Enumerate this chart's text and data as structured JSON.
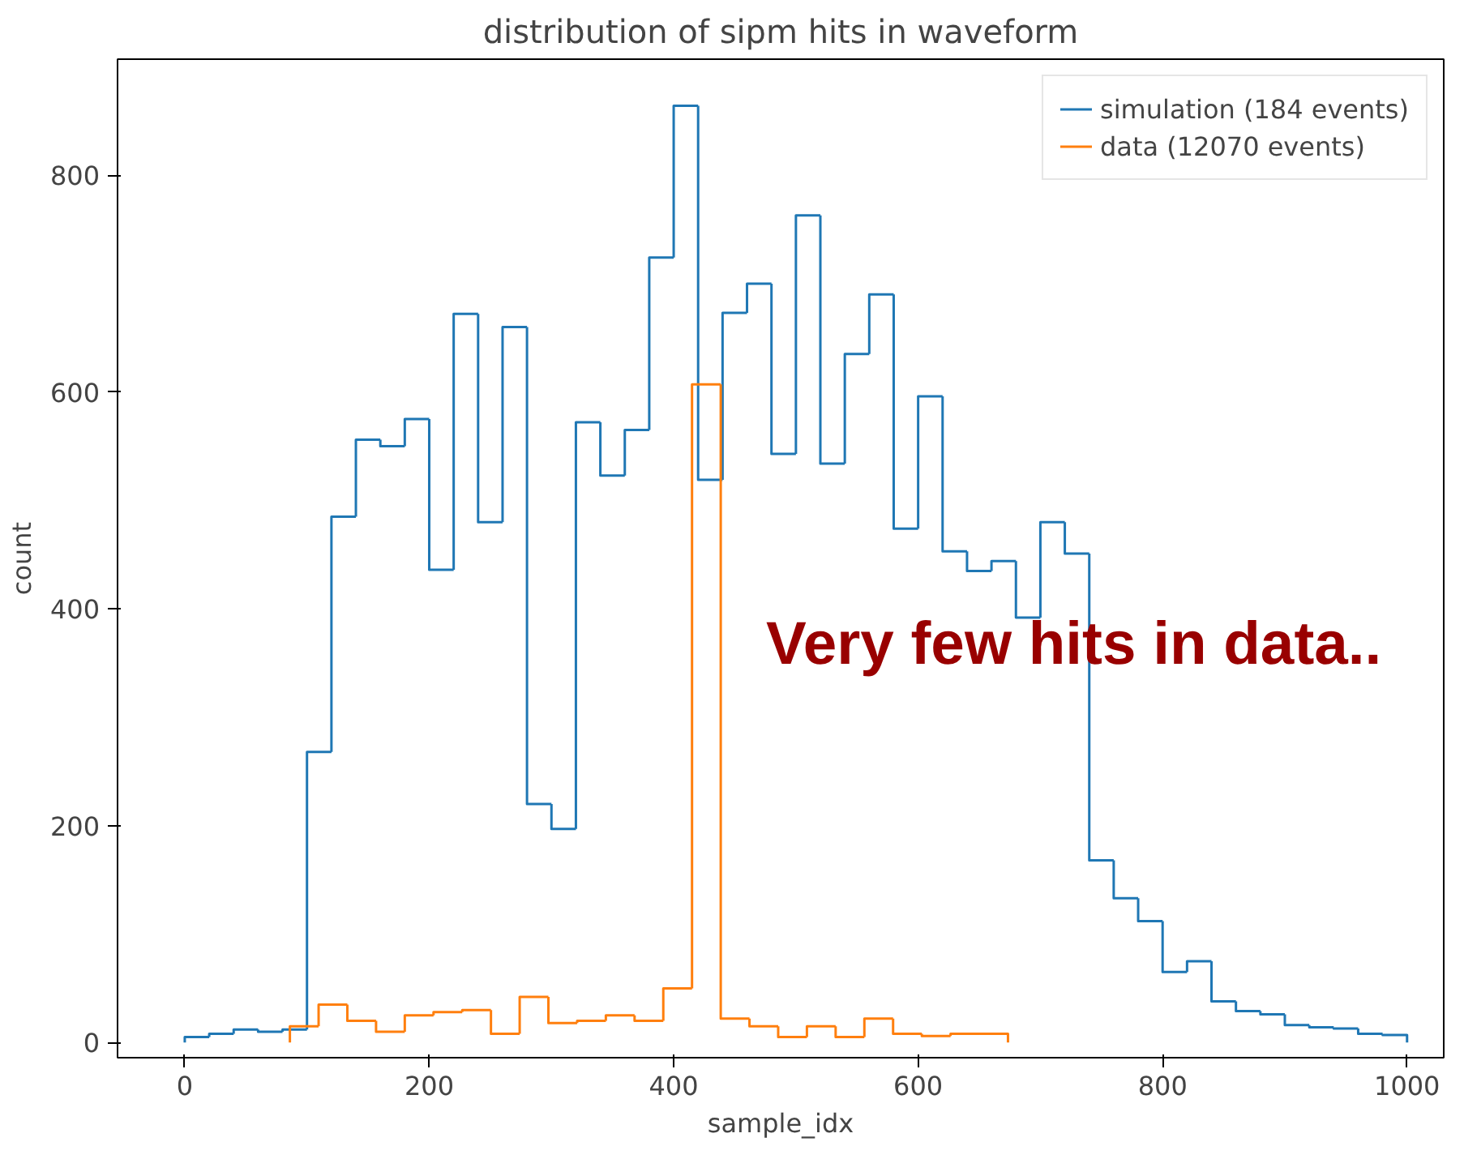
{
  "chart_data": {
    "type": "histogram",
    "title": "distribution of sipm hits in waveform",
    "xlabel": "sample_idx",
    "ylabel": "count",
    "bins": [
      0,
      20,
      40,
      60,
      80,
      100,
      120,
      140,
      160,
      180,
      200,
      220,
      240,
      260,
      280,
      300,
      320,
      340,
      360,
      380,
      400,
      420,
      440,
      460,
      480,
      500,
      520,
      540,
      560,
      580,
      600,
      620,
      640,
      660,
      680,
      700,
      720,
      740,
      760,
      780,
      800,
      820,
      840,
      860,
      880,
      900,
      920,
      940,
      960,
      980,
      1000
    ],
    "series": [
      {
        "name": "simulation (184 events)",
        "color": "#1f77b4",
        "values": [
          5,
          8,
          12,
          10,
          12,
          268,
          485,
          556,
          550,
          575,
          436,
          672,
          480,
          660,
          220,
          197,
          572,
          523,
          565,
          724,
          864,
          519,
          673,
          700,
          543,
          763,
          534,
          635,
          690,
          474,
          596,
          453,
          435,
          444,
          392,
          480,
          451,
          168,
          133,
          112,
          65,
          75,
          38,
          29,
          26,
          16,
          14,
          13,
          8,
          7
        ]
      },
      {
        "name": "data (12070 events)",
        "color": "#ff7f0e",
        "bins": [
          86,
          109.5,
          133,
          156.5,
          180,
          203.5,
          227,
          250.5,
          274,
          297.5,
          321,
          344.5,
          368,
          391.5,
          415,
          438.5,
          462,
          485.5,
          509,
          532.5,
          556,
          579.5,
          603,
          626.5,
          650,
          673.5
        ],
        "values": [
          15,
          35,
          20,
          10,
          25,
          28,
          30,
          8,
          42,
          18,
          20,
          25,
          20,
          50,
          607,
          22,
          15,
          5,
          15,
          5,
          22,
          8,
          6,
          8,
          8
        ]
      }
    ],
    "xlim": [
      -55,
      1030
    ],
    "ylim": [
      -14,
      907
    ],
    "xticks": [
      0,
      200,
      400,
      600,
      800,
      1000
    ],
    "yticks": [
      0,
      200,
      400,
      600,
      800
    ],
    "grid": false,
    "legend": "top right",
    "annotations": [
      "Very few hits in data.."
    ]
  }
}
